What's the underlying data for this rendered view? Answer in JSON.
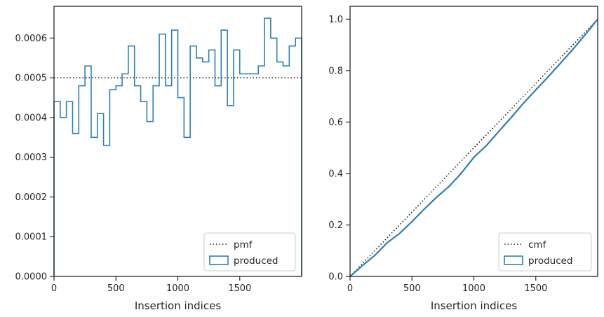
{
  "colors": {
    "produced": "#2f7fb3",
    "reference": "#111111",
    "frame": "#262626"
  },
  "chart_data": [
    {
      "type": "line",
      "xlabel": "Insertion indices",
      "ylabel": "",
      "xlim": [
        0,
        2000
      ],
      "ylim": [
        0,
        0.00068
      ],
      "xticks": [
        0,
        500,
        1000,
        1500
      ],
      "xtick_labels": [
        "0",
        "500",
        "1000",
        "1500"
      ],
      "yticks": [
        0,
        0.0001,
        0.0002,
        0.0003,
        0.0004,
        0.0005,
        0.0006
      ],
      "ytick_labels": [
        "0.0000",
        "0.0001",
        "0.0002",
        "0.0003",
        "0.0004",
        "0.0005",
        "0.0006"
      ],
      "grid": false,
      "legend_position": "bottom-right",
      "series": [
        {
          "name": "pmf",
          "style": "dotted",
          "x": [
            0,
            2000
          ],
          "y": [
            0.0005,
            0.0005
          ]
        },
        {
          "name": "produced",
          "style": "step-histogram",
          "bin_edges": [
            0,
            50,
            100,
            150,
            200,
            250,
            300,
            350,
            400,
            450,
            500,
            550,
            600,
            650,
            700,
            750,
            800,
            850,
            900,
            950,
            1000,
            1050,
            1100,
            1150,
            1200,
            1250,
            1300,
            1350,
            1400,
            1450,
            1500,
            1550,
            1600,
            1650,
            1700,
            1750,
            1800,
            1850,
            1900,
            1950,
            2000
          ],
          "values": [
            0.00044,
            0.0004,
            0.00044,
            0.00036,
            0.00048,
            0.00053,
            0.00035,
            0.00041,
            0.00033,
            0.00047,
            0.00048,
            0.00051,
            0.00058,
            0.00048,
            0.00044,
            0.00039,
            0.00048,
            0.00061,
            0.00048,
            0.00062,
            0.00045,
            0.00035,
            0.00058,
            0.00055,
            0.00054,
            0.00057,
            0.00048,
            0.00062,
            0.00043,
            0.00057,
            0.00051,
            0.00051,
            0.00051,
            0.00053,
            0.00065,
            0.0006,
            0.00054,
            0.00053,
            0.00058,
            0.0006
          ]
        }
      ],
      "legend": [
        "pmf",
        "produced"
      ]
    },
    {
      "type": "line",
      "xlabel": "Insertion indices",
      "ylabel": "",
      "xlim": [
        0,
        2000
      ],
      "ylim": [
        0,
        1.05
      ],
      "xticks": [
        0,
        500,
        1000,
        1500
      ],
      "xtick_labels": [
        "0",
        "500",
        "1000",
        "1500"
      ],
      "yticks": [
        0,
        0.2,
        0.4,
        0.6,
        0.8,
        1.0
      ],
      "ytick_labels": [
        "0.0",
        "0.2",
        "0.4",
        "0.6",
        "0.8",
        "1.0"
      ],
      "grid": false,
      "legend_position": "bottom-right",
      "series": [
        {
          "name": "cmf",
          "style": "dotted",
          "x": [
            0,
            2000
          ],
          "y": [
            0,
            1.0
          ]
        },
        {
          "name": "produced",
          "style": "solid",
          "x": [
            0,
            100,
            200,
            300,
            400,
            500,
            600,
            700,
            800,
            900,
            1000,
            1100,
            1200,
            1300,
            1400,
            1500,
            1600,
            1700,
            1800,
            1900,
            2000
          ],
          "y": [
            0,
            0.042,
            0.082,
            0.131,
            0.167,
            0.213,
            0.262,
            0.308,
            0.35,
            0.402,
            0.463,
            0.508,
            0.563,
            0.617,
            0.673,
            0.725,
            0.776,
            0.829,
            0.883,
            0.94,
            1.0
          ]
        }
      ],
      "legend": [
        "cmf",
        "produced"
      ]
    }
  ]
}
